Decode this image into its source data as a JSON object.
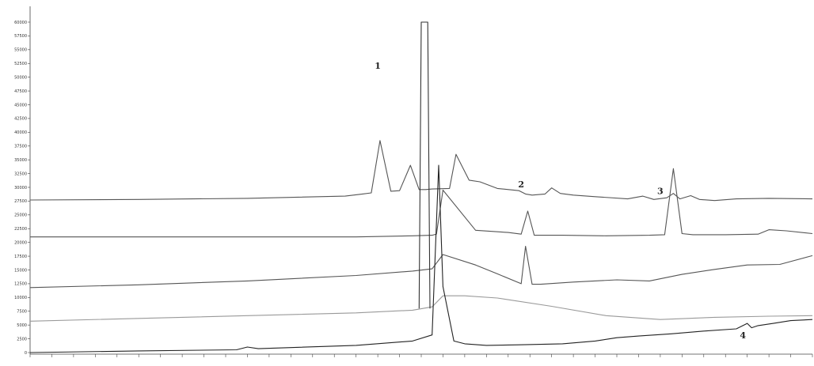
{
  "chart_data": {
    "type": "line",
    "title": "",
    "xlabel": "",
    "ylabel": "",
    "grid": false,
    "legend": "none",
    "y_tick_labels": [
      "0",
      "2500",
      "5000",
      "7500",
      "10000",
      "12500",
      "15000",
      "17500",
      "20000",
      "22500",
      "25000",
      "27500",
      "30000",
      "32500",
      "35000",
      "37500",
      "40000",
      "42500",
      "45000",
      "47500",
      "50000",
      "52500",
      "55000",
      "57500",
      "60000"
    ],
    "x_tick_count": 36,
    "x_range": [
      0,
      36
    ],
    "y_range": [
      0,
      60000
    ],
    "series": [
      {
        "name": "",
        "color": "#555555",
        "x": [
          0,
          5,
          10,
          14.5,
          15.3,
          15.7,
          16.1,
          16.6,
          17.0,
          17.5,
          17.9,
          18.2,
          18.5,
          19.3,
          19.6,
          20.2,
          20.7,
          21.5,
          22.5,
          22.8,
          23.1,
          23.7,
          24.0,
          24.4,
          25.0,
          26.0,
          27.5,
          28.2,
          28.7,
          29.3,
          29.6,
          29.9,
          30.4,
          30.8,
          31.5,
          32.5,
          34.0,
          36.0
        ],
        "y": [
          27700,
          27800,
          28000,
          28400,
          28800,
          29000,
          38500,
          29300,
          29400,
          34000,
          29600,
          29600,
          29700,
          29800,
          36000,
          31300,
          31000,
          29800,
          29400,
          28800,
          28600,
          28800,
          29900,
          28900,
          28600,
          28300,
          27900,
          28400,
          27800,
          28100,
          28900,
          27900,
          28500,
          27800,
          27600,
          27900,
          28000,
          27900
        ]
      },
      {
        "name": "",
        "color": "#555555",
        "x": [
          0,
          5,
          10,
          15,
          17.6,
          18.5,
          18.7,
          19.0,
          20.5,
          22.0,
          22.6,
          22.9,
          23.2,
          24.5,
          26.5,
          28.5,
          29.2,
          29.6,
          30.0,
          30.5,
          32.0,
          33.5,
          34.0,
          34.8,
          36.0
        ],
        "y": [
          21000,
          21000,
          21000,
          21000,
          21200,
          21300,
          21500,
          29500,
          22200,
          21800,
          21500,
          25700,
          21300,
          21300,
          21200,
          21300,
          21400,
          33400,
          21600,
          21400,
          21400,
          21500,
          22300,
          22100,
          21600
        ]
      },
      {
        "name": "",
        "color": "#555555",
        "x": [
          0,
          5,
          10,
          15,
          17.6,
          18.5,
          19.0,
          20.5,
          21.5,
          22.6,
          22.8,
          23.1,
          23.5,
          25.0,
          27.0,
          28.5,
          30.0,
          31.5,
          33.0,
          34.5,
          36.0
        ],
        "y": [
          11800,
          12300,
          13000,
          14000,
          14800,
          15200,
          17800,
          15900,
          14300,
          12500,
          19300,
          12400,
          12400,
          12800,
          13200,
          13000,
          14200,
          15100,
          15900,
          16000,
          17600
        ]
      },
      {
        "name": "",
        "color": "#999999",
        "x": [
          0,
          5,
          10,
          15,
          17.6,
          18.5,
          19.0,
          20.0,
          21.5,
          24.0,
          26.5,
          29.0,
          31.5,
          34.0,
          36.0
        ],
        "y": [
          5700,
          6200,
          6700,
          7200,
          7700,
          8300,
          10300,
          10300,
          9900,
          8400,
          6700,
          6000,
          6400,
          6600,
          6700
        ]
      },
      {
        "name": "",
        "color": "#222222",
        "x": [
          0,
          5,
          9.5,
          10,
          10.5,
          15,
          17.6,
          18.5,
          18.8,
          19.0,
          19.5,
          20.0,
          21.0,
          22.5,
          24.5,
          26.0,
          27.0,
          28.0,
          29.5,
          31.0,
          32.5,
          33.0,
          33.2,
          33.5,
          34.2,
          35.0,
          36.0
        ],
        "y": [
          0,
          300,
          500,
          1000,
          700,
          1300,
          2100,
          3200,
          34000,
          12000,
          2100,
          1600,
          1300,
          1400,
          1600,
          2100,
          2700,
          3000,
          3400,
          3900,
          4300,
          5300,
          4500,
          4900,
          5300,
          5800,
          6000
        ]
      },
      {
        "name": "",
        "color": "#333333",
        "x": [
          17.9,
          18.0,
          18.1,
          18.2,
          18.3,
          18.4
        ],
        "y": [
          8000,
          60000,
          60000,
          60000,
          60000,
          8000
        ]
      }
    ],
    "annotations": [
      {
        "text": "1",
        "x": 16.0,
        "y": 51500
      },
      {
        "text": "2",
        "x": 22.6,
        "y": 30000
      },
      {
        "text": "3",
        "x": 29.0,
        "y": 28800
      },
      {
        "text": "4",
        "x": 32.8,
        "y": 2600
      }
    ]
  }
}
